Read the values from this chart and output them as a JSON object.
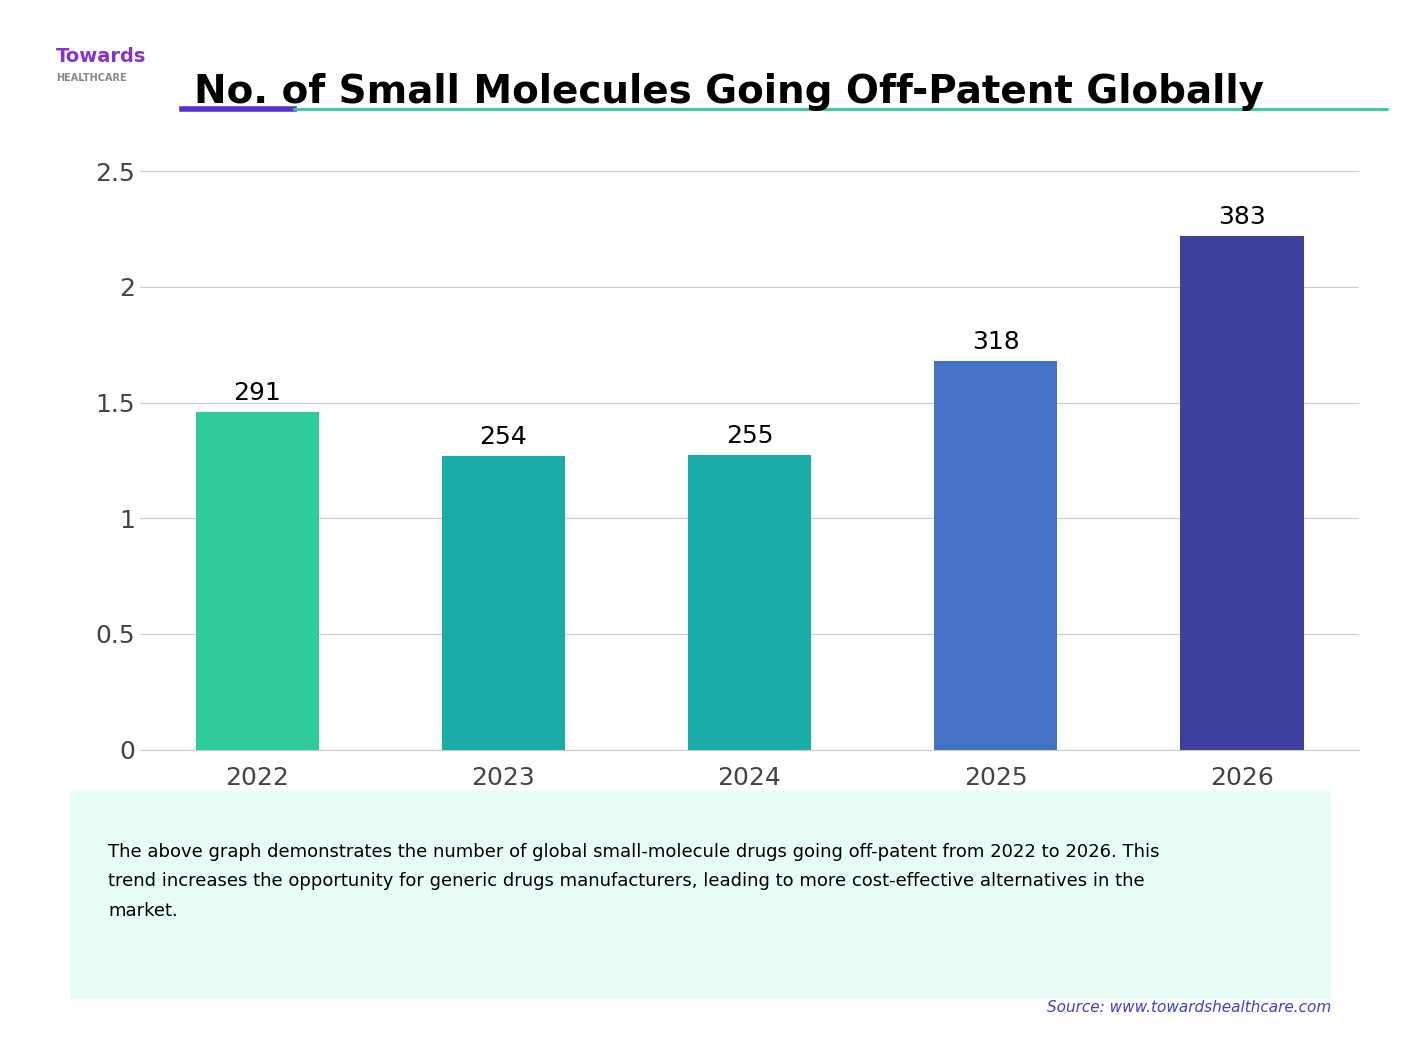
{
  "title": "No. of Small Molecules Going Off-Patent Globally",
  "categories": [
    "2022",
    "2023",
    "2024",
    "2025",
    "2026"
  ],
  "values": [
    291,
    254,
    255,
    318,
    383
  ],
  "bar_heights": [
    1.46,
    1.27,
    1.275,
    1.68,
    2.22
  ],
  "bar_colors": [
    "#2ECC9A",
    "#1AADA8",
    "#1AADA8",
    "#4472C4",
    "#3F3F9F"
  ],
  "ylim": [
    0,
    2.7
  ],
  "yticks": [
    0,
    0.5,
    1,
    1.5,
    2,
    2.5
  ],
  "background_color": "#ffffff",
  "grid_color": "#cccccc",
  "title_fontsize": 28,
  "annotation_fontsize": 18,
  "tick_fontsize": 18,
  "caption_text": "The above graph demonstrates the number of global small-molecule drugs going off-patent from 2022 to 2026. This\ntrend increases the opportunity for generic drugs manufacturers, leading to more cost-effective alternatives in the\nmarket.",
  "caption_bg": "#e8fdf5",
  "source_text": "Source: www.towardshealthcare.com",
  "source_color": "#4040cc",
  "header_line1_color": "#5533cc",
  "header_line2_color": "#2ECC9A",
  "bar_width": 0.5
}
